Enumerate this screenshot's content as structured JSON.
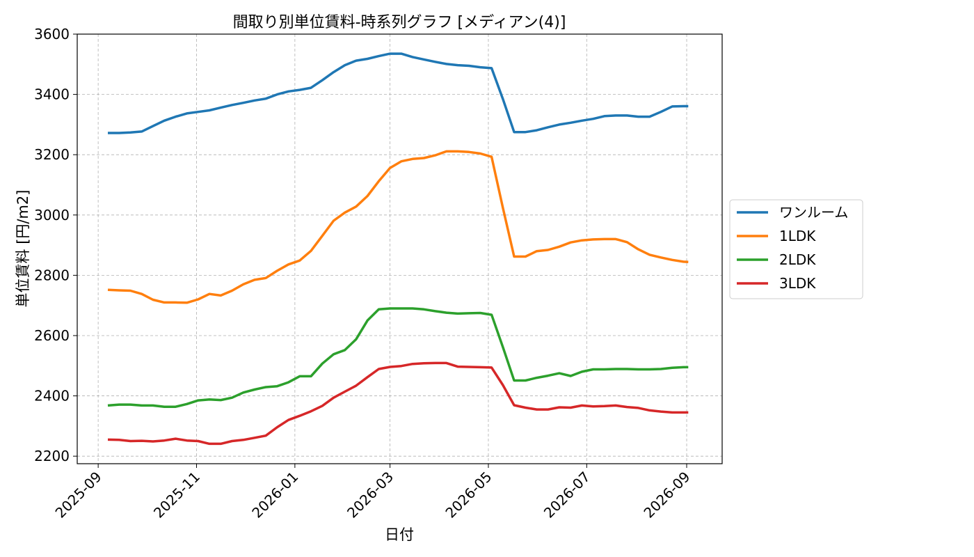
{
  "chart_data": {
    "type": "line",
    "title": "間取り別単位賃料-時系列グラフ [メディアン(4)]",
    "xlabel": "日付",
    "ylabel": "単位賃料 [円/m2]",
    "ylim": [
      2175,
      3600
    ],
    "yticks": [
      2200,
      2400,
      2600,
      2800,
      3000,
      3200,
      3400,
      3600
    ],
    "xlim": [
      "2025-08-19",
      "2026-09-23"
    ],
    "xticks": [
      "2025-09",
      "2025-11",
      "2026-01",
      "2026-03",
      "2026-05",
      "2026-07",
      "2026-09"
    ],
    "grid": true,
    "legend_position": "right",
    "x": [
      "2025-09-07",
      "2025-09-14",
      "2025-09-21",
      "2025-09-28",
      "2025-10-05",
      "2025-10-12",
      "2025-10-19",
      "2025-10-26",
      "2025-11-02",
      "2025-11-09",
      "2025-11-16",
      "2025-11-23",
      "2025-11-30",
      "2025-12-07",
      "2025-12-14",
      "2025-12-21",
      "2025-12-28",
      "2026-01-04",
      "2026-01-11",
      "2026-01-18",
      "2026-01-25",
      "2026-02-01",
      "2026-02-08",
      "2026-02-15",
      "2026-02-22",
      "2026-03-01",
      "2026-03-08",
      "2026-03-15",
      "2026-03-22",
      "2026-03-29",
      "2026-04-05",
      "2026-04-12",
      "2026-04-19",
      "2026-04-26",
      "2026-05-03",
      "2026-05-10",
      "2026-05-17",
      "2026-05-24",
      "2026-05-31",
      "2026-06-07",
      "2026-06-14",
      "2026-06-21",
      "2026-06-28",
      "2026-07-05",
      "2026-07-12",
      "2026-07-19",
      "2026-07-26",
      "2026-08-02",
      "2026-08-09",
      "2026-08-16",
      "2026-08-23",
      "2026-08-30",
      "2026-09-02"
    ],
    "series": [
      {
        "name": "ワンルーム",
        "color": "#1f77b4",
        "values": [
          3272,
          3272,
          3274,
          3277,
          3295,
          3313,
          3326,
          3337,
          3342,
          3347,
          3356,
          3365,
          3372,
          3380,
          3386,
          3400,
          3410,
          3415,
          3422,
          3447,
          3474,
          3497,
          3512,
          3518,
          3527,
          3535,
          3535,
          3524,
          3516,
          3508,
          3501,
          3497,
          3495,
          3490,
          3487,
          3385,
          3275,
          3275,
          3281,
          3291,
          3300,
          3306,
          3313,
          3319,
          3328,
          3330,
          3330,
          3326,
          3326,
          3342,
          3360,
          3361,
          3361
        ]
      },
      {
        "name": "1LDK",
        "color": "#ff7f0e",
        "values": [
          2752,
          2750,
          2749,
          2738,
          2719,
          2710,
          2710,
          2709,
          2720,
          2738,
          2733,
          2749,
          2770,
          2785,
          2791,
          2815,
          2836,
          2849,
          2881,
          2931,
          2981,
          3008,
          3028,
          3063,
          3112,
          3156,
          3178,
          3186,
          3189,
          3198,
          3211,
          3211,
          3209,
          3204,
          3193,
          3024,
          2862,
          2862,
          2880,
          2884,
          2895,
          2909,
          2916,
          2919,
          2920,
          2920,
          2910,
          2886,
          2868,
          2859,
          2851,
          2845,
          2844
        ]
      },
      {
        "name": "2LDK",
        "color": "#2ca02c",
        "values": [
          2368,
          2371,
          2371,
          2368,
          2368,
          2364,
          2364,
          2373,
          2385,
          2388,
          2386,
          2394,
          2411,
          2421,
          2429,
          2432,
          2445,
          2465,
          2465,
          2507,
          2538,
          2552,
          2588,
          2650,
          2687,
          2690,
          2690,
          2690,
          2687,
          2681,
          2676,
          2673,
          2674,
          2675,
          2669,
          2562,
          2451,
          2451,
          2460,
          2467,
          2475,
          2466,
          2480,
          2488,
          2488,
          2489,
          2489,
          2488,
          2488,
          2489,
          2493,
          2495,
          2495
        ]
      },
      {
        "name": "3LDK",
        "color": "#d62728",
        "values": [
          2255,
          2254,
          2250,
          2251,
          2249,
          2252,
          2258,
          2252,
          2250,
          2241,
          2241,
          2250,
          2254,
          2261,
          2268,
          2296,
          2320,
          2334,
          2349,
          2367,
          2394,
          2414,
          2434,
          2462,
          2489,
          2496,
          2499,
          2506,
          2508,
          2509,
          2509,
          2497,
          2496,
          2495,
          2494,
          2436,
          2369,
          2361,
          2355,
          2355,
          2362,
          2361,
          2368,
          2365,
          2366,
          2368,
          2363,
          2360,
          2352,
          2348,
          2345,
          2345,
          2345
        ]
      }
    ]
  }
}
